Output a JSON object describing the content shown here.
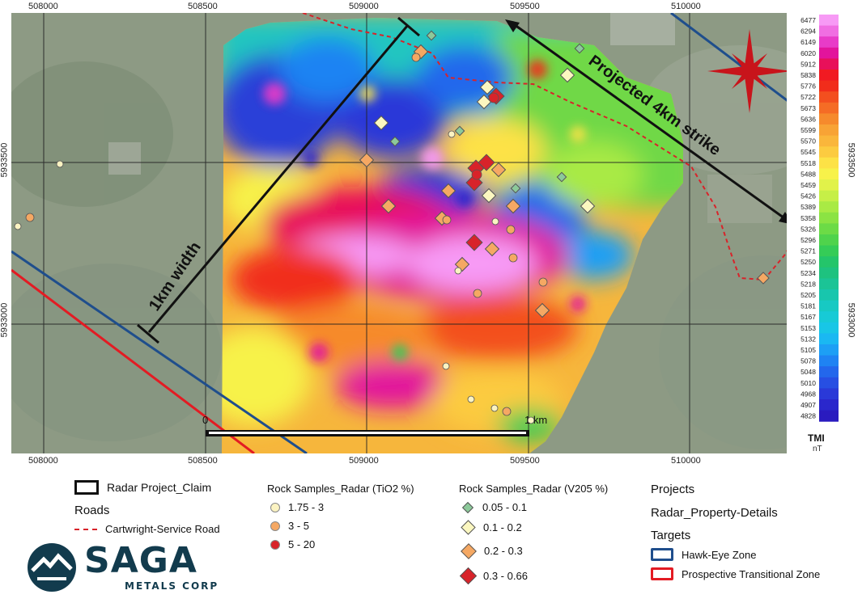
{
  "map": {
    "easting_ticks": [
      "508000",
      "508500",
      "509000",
      "509500",
      "510000"
    ],
    "northing_ticks": [
      "5933500",
      "5933000"
    ],
    "annotations": {
      "width_label": "1km width",
      "strike_label": "Projected 4km strike"
    },
    "scale_bar": {
      "start": "0",
      "end": "1 km"
    },
    "colorbar": {
      "values": [
        "6477",
        "6294",
        "6149",
        "6020",
        "5912",
        "5838",
        "5776",
        "5722",
        "5673",
        "5636",
        "5599",
        "5570",
        "5545",
        "5518",
        "5488",
        "5459",
        "5426",
        "5389",
        "5358",
        "5326",
        "5296",
        "5271",
        "5250",
        "5234",
        "5218",
        "5205",
        "5181",
        "5167",
        "5153",
        "5132",
        "5105",
        "5078",
        "5048",
        "5010",
        "4968",
        "4907",
        "4828"
      ],
      "colors": [
        "#f79af5",
        "#f06ee2",
        "#e83bc8",
        "#e2149c",
        "#e8105a",
        "#f11a22",
        "#f12d1b",
        "#f34f1f",
        "#f56c25",
        "#f68a2c",
        "#f8a335",
        "#fab63b",
        "#fccb40",
        "#fde246",
        "#f7f24a",
        "#e1f24a",
        "#c6ef47",
        "#a9ea44",
        "#8be343",
        "#6cdb46",
        "#4fd34c",
        "#35cc57",
        "#24c56a",
        "#1ec27f",
        "#1bc496",
        "#18c6ad",
        "#17c9c3",
        "#17cad6",
        "#18c6e6",
        "#1ab8f2",
        "#1d9ff5",
        "#1f83f3",
        "#2367ec",
        "#274fe3",
        "#2a39d8",
        "#2a27cc",
        "#2a1bbf"
      ],
      "unit_title": "TMI",
      "unit": "nT"
    }
  },
  "legend": {
    "claim": "Radar Project_Claim",
    "roads_title": "Roads",
    "road_item": "Cartwright-Service Road",
    "tio2_title": "Rock Samples_Radar (TiO2 %)",
    "tio2_items": [
      {
        "label": "1.75 - 3",
        "color": "#fbf3c2"
      },
      {
        "label": "3 - 5",
        "color": "#f5a863"
      },
      {
        "label": "5 - 20",
        "color": "#d8232a"
      }
    ],
    "v2o5_title": "Rock Samples_Radar (V205 %)",
    "v2o5_items": [
      {
        "label": "0.05 - 0.1",
        "color": "#8cc99a"
      },
      {
        "label": "0.1 - 0.2",
        "color": "#fbf7c0"
      },
      {
        "label": "0.2 - 0.3",
        "color": "#f5a863"
      },
      {
        "label": "0.3 - 0.66",
        "color": "#d8232a"
      }
    ],
    "projects_title": "Projects",
    "property_label": "Radar_Property-Details",
    "targets_title": "Targets",
    "target_items": [
      {
        "label": "Hawk-Eye Zone",
        "color": "#1f4e8c"
      },
      {
        "label": "Prospective Transitional Zone",
        "color": "#e31b23"
      }
    ]
  },
  "logo": {
    "name": "SAGA",
    "subtitle": "METALS CORP"
  }
}
